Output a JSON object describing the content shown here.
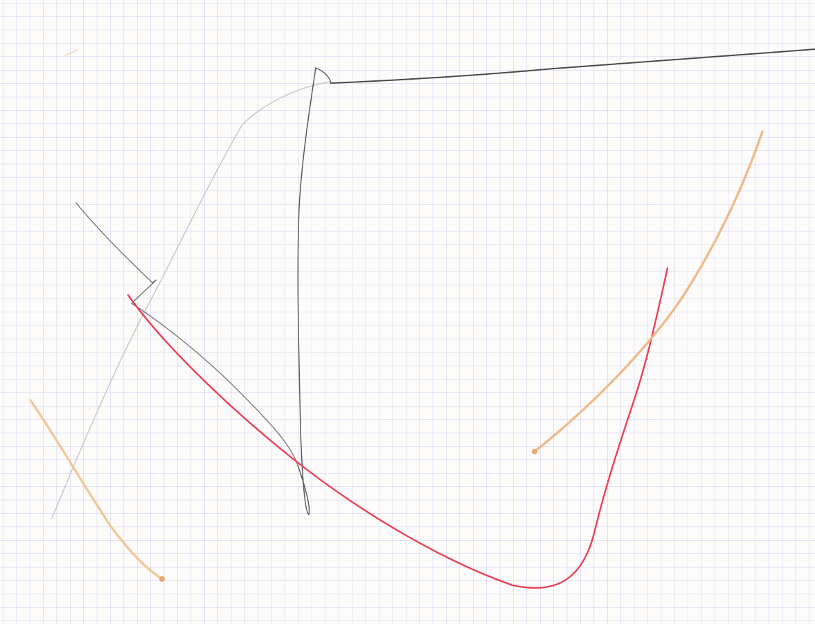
{
  "colors": {
    "paper": "#fdfcfb",
    "grid": "#c7c8ee",
    "pencil_dark": "#4a4a4a",
    "pencil_mid": "#7a7a7a",
    "pencil_light": "#c4c4c4",
    "red_pen": "#ec3f55",
    "orange_light": "#f2c79a",
    "orange_mid": "#efb98a"
  }
}
